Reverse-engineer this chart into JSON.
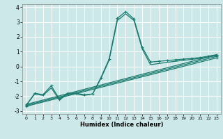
{
  "xlabel": "Humidex (Indice chaleur)",
  "ylabel": "",
  "xlim": [
    -0.5,
    23.5
  ],
  "ylim": [
    -3.2,
    4.2
  ],
  "yticks": [
    -3,
    -2,
    -1,
    0,
    1,
    2,
    3,
    4
  ],
  "xticks": [
    0,
    1,
    2,
    3,
    4,
    5,
    6,
    7,
    8,
    9,
    10,
    11,
    12,
    13,
    14,
    15,
    16,
    17,
    18,
    19,
    20,
    21,
    22,
    23
  ],
  "bg_color": "#cce8e8",
  "grid_color": "#ffffff",
  "line_color": "#1a7a6e",
  "lines": [
    {
      "x": [
        0,
        1,
        2,
        3,
        4,
        5,
        6,
        7,
        8,
        9,
        10,
        11,
        12,
        13,
        14,
        15,
        16,
        17,
        18,
        19,
        20,
        21,
        22,
        23
      ],
      "y": [
        -2.6,
        -1.8,
        -1.9,
        -1.3,
        -2.2,
        -1.8,
        -1.8,
        -1.9,
        -1.85,
        -0.75,
        0.5,
        3.25,
        3.7,
        3.2,
        1.3,
        0.3,
        0.35,
        0.4,
        0.45,
        0.5,
        0.55,
        0.6,
        0.7,
        0.8
      ],
      "marker": true
    },
    {
      "x": [
        0,
        1,
        2,
        3,
        4,
        5,
        6,
        7,
        8,
        9,
        10,
        11,
        12,
        13,
        14,
        15,
        16,
        17,
        18,
        19,
        20,
        21,
        22,
        23
      ],
      "y": [
        -2.6,
        -1.85,
        -1.95,
        -1.45,
        -2.25,
        -1.85,
        -1.85,
        -1.95,
        -1.85,
        -0.82,
        0.42,
        3.1,
        3.55,
        3.1,
        1.18,
        0.12,
        0.2,
        0.28,
        0.35,
        0.42,
        0.48,
        0.55,
        0.65,
        0.72
      ],
      "marker": false
    },
    {
      "x": [
        0,
        23
      ],
      "y": [
        -2.55,
        0.78
      ],
      "marker": true
    },
    {
      "x": [
        0,
        23
      ],
      "y": [
        -2.62,
        0.68
      ],
      "marker": true
    },
    {
      "x": [
        0,
        23
      ],
      "y": [
        -2.68,
        0.58
      ],
      "marker": true
    }
  ],
  "marker_symbol": "+",
  "markersize": 3.5,
  "linewidth": 0.9
}
